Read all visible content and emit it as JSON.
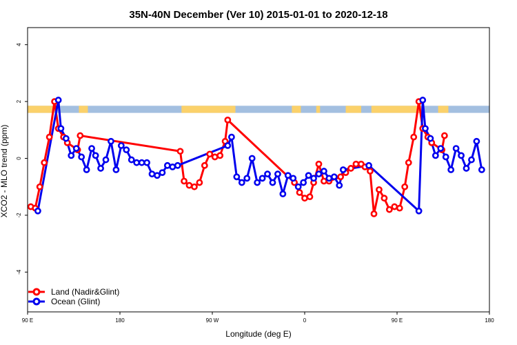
{
  "chart_data": {
    "type": "line",
    "title": "35N-40N December (Ver 10)   2015-01-01 to 2020-12-18",
    "xlabel": "Longitude (deg E)",
    "ylabel": "XCO2 - MLO trend (ppm)",
    "xlim": [
      90,
      450
    ],
    "ylim": [
      -5.4,
      4.6
    ],
    "x_ticks": [
      {
        "value": 90,
        "label": "90 E"
      },
      {
        "value": 162,
        "label": "180"
      },
      {
        "value": 234,
        "label": "90 W"
      },
      {
        "value": 306,
        "label": "0"
      },
      {
        "value": 378,
        "label": "90 E"
      },
      {
        "value": 450,
        "label": "180"
      }
    ],
    "y_ticks": [
      {
        "value": -4,
        "label": "-4"
      },
      {
        "value": -2,
        "label": "-2"
      },
      {
        "value": 0,
        "label": "0"
      },
      {
        "value": 2,
        "label": "2"
      },
      {
        "value": 4,
        "label": "4"
      }
    ],
    "land_ocean_band": {
      "y_range": [
        1.6,
        1.85
      ],
      "land_color": "#fbd16a",
      "ocean_color": "#a3bfe0",
      "land_segments": [
        [
          90,
          110
        ],
        [
          130,
          137
        ],
        [
          210,
          252
        ],
        [
          296,
          303
        ],
        [
          315,
          318
        ],
        [
          338,
          350
        ],
        [
          358,
          397
        ],
        [
          410,
          418
        ]
      ]
    },
    "legend": {
      "position": "bottom-left"
    },
    "series": [
      {
        "name": "Land (Nadir&Glint)",
        "color": "#ff0000",
        "points": [
          [
            92.5,
            -1.7
          ],
          [
            96,
            -1.75
          ],
          [
            99.5,
            -1.0
          ],
          [
            103,
            -0.15
          ],
          [
            107,
            0.75
          ],
          [
            111,
            2.0
          ],
          [
            114,
            1.05
          ],
          [
            118,
            0.75
          ],
          [
            121,
            0.55
          ],
          [
            129,
            0.3
          ],
          [
            131,
            0.8
          ],
          [
            209,
            0.25
          ],
          [
            212,
            -0.8
          ],
          [
            216,
            -0.95
          ],
          [
            220,
            -1.0
          ],
          [
            224,
            -0.85
          ],
          [
            228,
            -0.25
          ],
          [
            232,
            0.15
          ],
          [
            236,
            0.05
          ],
          [
            240,
            0.1
          ],
          [
            244,
            0.6
          ],
          [
            246,
            1.35
          ],
          [
            298,
            -0.85
          ],
          [
            302,
            -1.2
          ],
          [
            306,
            -1.4
          ],
          [
            310,
            -1.35
          ],
          [
            313,
            -0.85
          ],
          [
            317,
            -0.2
          ],
          [
            321,
            -0.8
          ],
          [
            325,
            -0.8
          ],
          [
            334,
            -0.65
          ],
          [
            338,
            -0.5
          ],
          [
            342,
            -0.35
          ],
          [
            346,
            -0.2
          ],
          [
            350,
            -0.2
          ],
          [
            353,
            -0.3
          ],
          [
            357,
            -0.45
          ],
          [
            360,
            -1.95
          ],
          [
            364,
            -1.1
          ],
          [
            368,
            -1.4
          ],
          [
            372,
            -1.8
          ],
          [
            376,
            -1.7
          ],
          [
            380,
            -1.75
          ],
          [
            384,
            -1.0
          ],
          [
            387,
            -0.15
          ],
          [
            391,
            0.75
          ],
          [
            395,
            2.0
          ],
          [
            398,
            1.05
          ],
          [
            402,
            0.75
          ],
          [
            405,
            0.55
          ],
          [
            413,
            0.3
          ],
          [
            415,
            0.8
          ]
        ]
      },
      {
        "name": "Ocean (Glint)",
        "color": "#0000ee",
        "points": [
          [
            98,
            -1.85
          ],
          [
            114,
            2.05
          ],
          [
            116,
            1.05
          ],
          [
            120,
            0.7
          ],
          [
            124,
            0.1
          ],
          [
            128,
            0.35
          ],
          [
            132,
            0.05
          ],
          [
            136,
            -0.4
          ],
          [
            140,
            0.35
          ],
          [
            143,
            0.1
          ],
          [
            147,
            -0.35
          ],
          [
            151,
            -0.05
          ],
          [
            155,
            0.6
          ],
          [
            159,
            -0.4
          ],
          [
            163,
            0.45
          ],
          [
            167,
            0.3
          ],
          [
            171,
            -0.05
          ],
          [
            175,
            -0.15
          ],
          [
            179,
            -0.15
          ],
          [
            183,
            -0.15
          ],
          [
            187,
            -0.55
          ],
          [
            191,
            -0.6
          ],
          [
            195,
            -0.5
          ],
          [
            199,
            -0.25
          ],
          [
            203,
            -0.3
          ],
          [
            207,
            -0.25
          ],
          [
            246,
            0.45
          ],
          [
            249,
            0.75
          ],
          [
            253,
            -0.65
          ],
          [
            257,
            -0.85
          ],
          [
            261,
            -0.7
          ],
          [
            265,
            0.0
          ],
          [
            269,
            -0.85
          ],
          [
            273,
            -0.7
          ],
          [
            277,
            -0.55
          ],
          [
            281,
            -0.85
          ],
          [
            285,
            -0.55
          ],
          [
            289,
            -1.25
          ],
          [
            293,
            -0.6
          ],
          [
            297,
            -0.7
          ],
          [
            301,
            -1.0
          ],
          [
            305,
            -0.85
          ],
          [
            309,
            -0.6
          ],
          [
            313,
            -0.7
          ],
          [
            317,
            -0.55
          ],
          [
            321,
            -0.45
          ],
          [
            325,
            -0.7
          ],
          [
            329,
            -0.65
          ],
          [
            333,
            -0.95
          ],
          [
            336,
            -0.4
          ],
          [
            356,
            -0.25
          ],
          [
            395,
            -1.85
          ],
          [
            398,
            2.05
          ],
          [
            400,
            1.05
          ],
          [
            404,
            0.7
          ],
          [
            408,
            0.1
          ],
          [
            412,
            0.35
          ],
          [
            416,
            0.05
          ],
          [
            420,
            -0.4
          ],
          [
            424,
            0.35
          ],
          [
            428,
            0.1
          ],
          [
            432,
            -0.35
          ],
          [
            436,
            -0.05
          ],
          [
            440,
            0.6
          ],
          [
            444,
            -0.4
          ]
        ]
      }
    ]
  }
}
